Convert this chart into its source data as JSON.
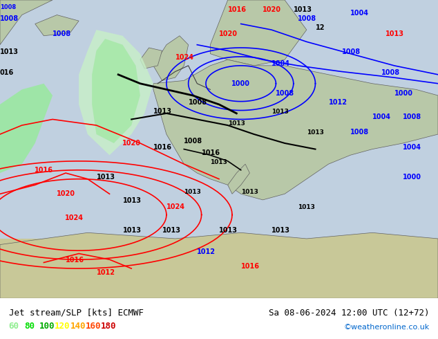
{
  "title_left": "Jet stream/SLP [kts] ECMWF",
  "title_right": "Sa 08-06-2024 12:00 UTC (12+72)",
  "watermark": "©weatheronline.co.uk",
  "legend_values": [
    "60",
    "80",
    "100",
    "120",
    "140",
    "160",
    "180"
  ],
  "legend_colors": [
    "#90ee90",
    "#00dd00",
    "#00aa00",
    "#ffff00",
    "#ffa500",
    "#ff4400",
    "#cc0000"
  ],
  "bg_color": "#aaddaa",
  "map_bg": "#c8e6c8",
  "ocean_color": "#b0d0f0",
  "land_color": "#c8e6c8",
  "contour_color_high": "#ff0000",
  "contour_color_low": "#0000ff",
  "contour_color_black": "#000000",
  "figsize": [
    6.34,
    4.9
  ],
  "dpi": 100
}
